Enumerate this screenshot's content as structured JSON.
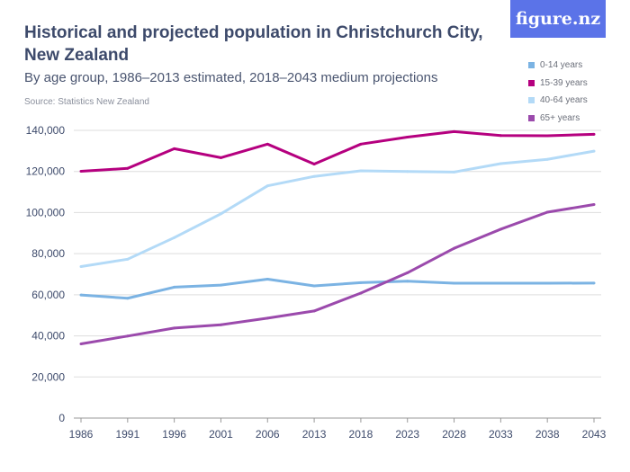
{
  "header": {
    "title": "Historical and projected population in Christchurch City, New Zealand",
    "subtitle": "By age group, 1986–2013 estimated, 2018–2043 medium projections",
    "source": "Source: Statistics New Zealand",
    "logo": "figure.nz"
  },
  "chart_data": {
    "type": "line",
    "title": "Historical and projected population in Christchurch City, New Zealand",
    "subtitle": "By age group, 1986–2013 estimated, 2018–2043 medium projections",
    "categories": [
      "1986",
      "1991",
      "1996",
      "2001",
      "2006",
      "2013",
      "2018",
      "2023",
      "2028",
      "2033",
      "2038",
      "2043"
    ],
    "ylim": [
      0,
      140000
    ],
    "yticks": [
      0,
      20000,
      40000,
      60000,
      80000,
      100000,
      120000,
      140000
    ],
    "ytick_labels": [
      "0",
      "20,000",
      "40,000",
      "60,000",
      "80,000",
      "100,000",
      "120,000",
      "140,000"
    ],
    "grid": true,
    "legend": "top-right",
    "series": [
      {
        "name": "0-14 years",
        "color": "#7bb3e3",
        "values": [
          59900,
          58300,
          63700,
          64700,
          67600,
          64300,
          65900,
          66600,
          65600,
          65600,
          65600,
          65700
        ]
      },
      {
        "name": "15-39 years",
        "color": "#b5007f",
        "values": [
          120100,
          121500,
          131100,
          126700,
          133300,
          123600,
          133300,
          136700,
          139400,
          137500,
          137400,
          138100
        ]
      },
      {
        "name": "40-64 years",
        "color": "#b3daf7",
        "values": [
          73700,
          77300,
          87800,
          99400,
          113000,
          117600,
          120300,
          120000,
          119700,
          123800,
          125900,
          129900
        ]
      },
      {
        "name": "65+ years",
        "color": "#9b4aac",
        "values": [
          36100,
          39900,
          43800,
          45400,
          48600,
          52100,
          60800,
          70700,
          82600,
          91900,
          100200,
          103900
        ]
      }
    ]
  }
}
